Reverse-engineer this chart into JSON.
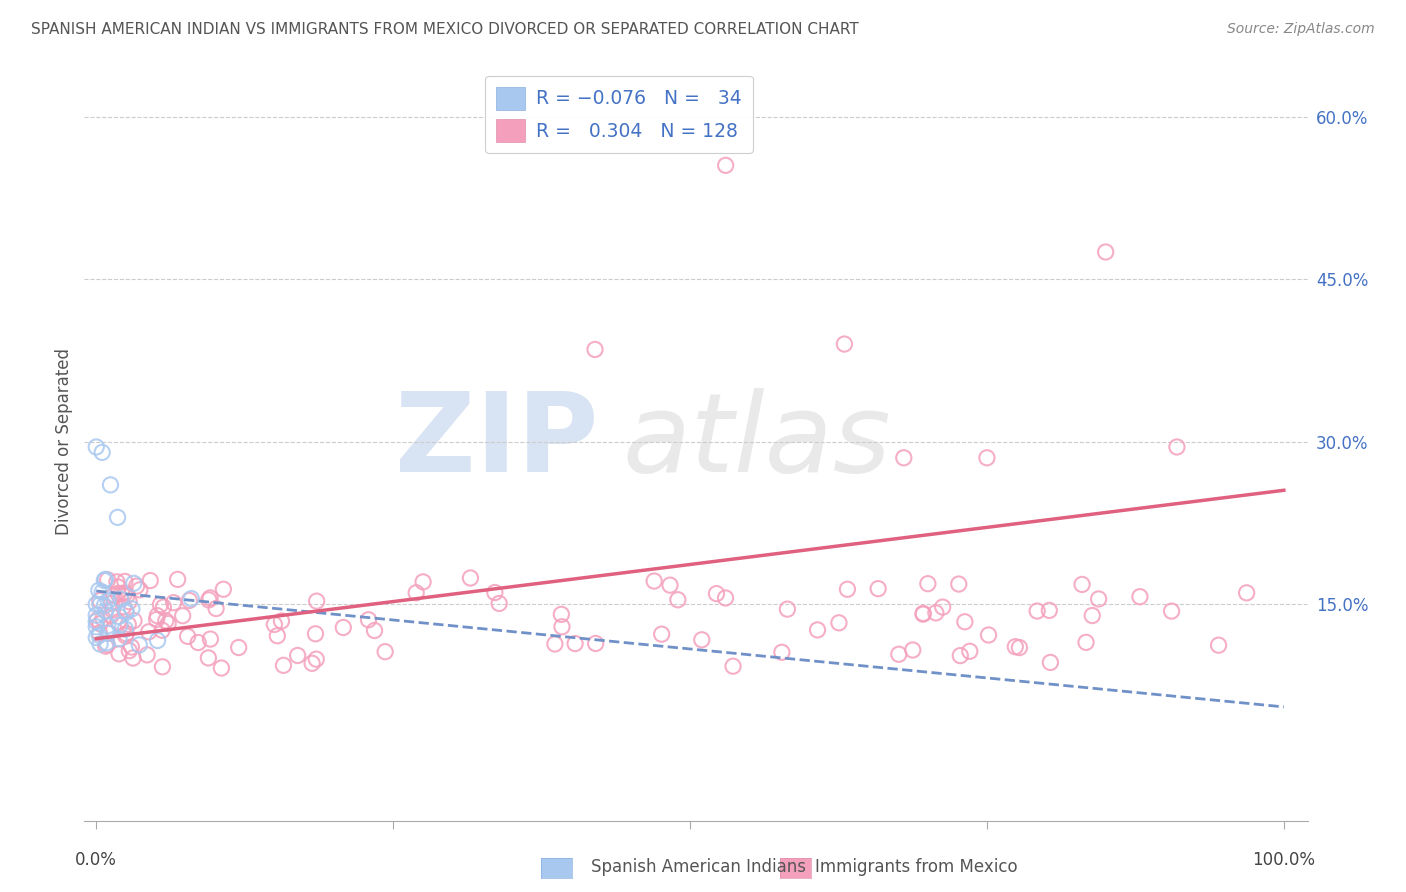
{
  "title": "SPANISH AMERICAN INDIAN VS IMMIGRANTS FROM MEXICO DIVORCED OR SEPARATED CORRELATION CHART",
  "source": "Source: ZipAtlas.com",
  "ylabel": "Divorced or Separated",
  "color_blue": "#a8c8f0",
  "color_pink": "#f4a0bc",
  "color_blue_line": "#7090c8",
  "color_pink_line": "#e06080",
  "background_color": "#ffffff",
  "xlim": [
    -0.01,
    1.02
  ],
  "ylim": [
    -0.05,
    0.65
  ],
  "blue_line_y0": 0.162,
  "blue_line_y1": 0.055,
  "pink_line_y0": 0.118,
  "pink_line_y1": 0.255,
  "y_ticks": [
    0.15,
    0.3,
    0.45,
    0.6
  ],
  "y_tick_labels": [
    "15.0%",
    "30.0%",
    "45.0%",
    "60.0%"
  ],
  "watermark_zip": "ZIP",
  "watermark_atlas": "atlas",
  "footer_label1": "Spanish American Indians",
  "footer_label2": "Immigrants from Mexico"
}
